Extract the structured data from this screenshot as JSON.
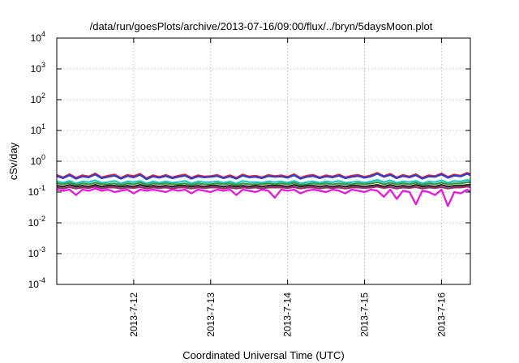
{
  "chart_data": {
    "type": "line",
    "title": "/data/run/goesPlots/archive/2013-07-16/09:00/flux/../bryn/5daysMoon.plot",
    "xlabel": "Coordinated Universal Time (UTC)",
    "ylabel": "cSv/day",
    "yscale": "log",
    "ylim": [
      0.0001,
      10000
    ],
    "xlim": [
      "2013-07-11T00:00",
      "2013-07-16T09:00"
    ],
    "grid": true,
    "legend": "none",
    "y_ticks": [
      {
        "base": "10",
        "exp": "-4",
        "value": 0.0001
      },
      {
        "base": "10",
        "exp": "-3",
        "value": 0.001
      },
      {
        "base": "10",
        "exp": "-2",
        "value": 0.01
      },
      {
        "base": "10",
        "exp": "-1",
        "value": 0.1
      },
      {
        "base": "10",
        "exp": "0",
        "value": 1
      },
      {
        "base": "10",
        "exp": "1",
        "value": 10
      },
      {
        "base": "10",
        "exp": "2",
        "value": 100
      },
      {
        "base": "10",
        "exp": "3",
        "value": 1000
      },
      {
        "base": "10",
        "exp": "4",
        "value": 10000
      }
    ],
    "x_ticks": [
      {
        "label": "2013-7-12",
        "value": "2013-07-12T00:00"
      },
      {
        "label": "2013-7-13",
        "value": "2013-07-13T00:00"
      },
      {
        "label": "2013-7-14",
        "value": "2013-07-14T00:00"
      },
      {
        "label": "2013-7-15",
        "value": "2013-07-15T00:00"
      },
      {
        "label": "2013-7-16",
        "value": "2013-07-16T00:00"
      }
    ],
    "x": [
      "2013-07-11T00:00",
      "2013-07-11T02:00",
      "2013-07-11T04:00",
      "2013-07-11T06:00",
      "2013-07-11T08:00",
      "2013-07-11T10:00",
      "2013-07-11T12:00",
      "2013-07-11T14:00",
      "2013-07-11T16:00",
      "2013-07-11T18:00",
      "2013-07-11T20:00",
      "2013-07-11T22:00",
      "2013-07-12T00:00",
      "2013-07-12T02:00",
      "2013-07-12T04:00",
      "2013-07-12T06:00",
      "2013-07-12T08:00",
      "2013-07-12T10:00",
      "2013-07-12T12:00",
      "2013-07-12T14:00",
      "2013-07-12T16:00",
      "2013-07-12T18:00",
      "2013-07-12T20:00",
      "2013-07-12T22:00",
      "2013-07-13T00:00",
      "2013-07-13T02:00",
      "2013-07-13T04:00",
      "2013-07-13T06:00",
      "2013-07-13T08:00",
      "2013-07-13T10:00",
      "2013-07-13T12:00",
      "2013-07-13T14:00",
      "2013-07-13T16:00",
      "2013-07-13T18:00",
      "2013-07-13T20:00",
      "2013-07-13T22:00",
      "2013-07-14T00:00",
      "2013-07-14T02:00",
      "2013-07-14T04:00",
      "2013-07-14T06:00",
      "2013-07-14T08:00",
      "2013-07-14T10:00",
      "2013-07-14T12:00",
      "2013-07-14T14:00",
      "2013-07-14T16:00",
      "2013-07-14T18:00",
      "2013-07-14T20:00",
      "2013-07-14T22:00",
      "2013-07-15T00:00",
      "2013-07-15T02:00",
      "2013-07-15T04:00",
      "2013-07-15T06:00",
      "2013-07-15T08:00",
      "2013-07-15T10:00",
      "2013-07-15T12:00",
      "2013-07-15T14:00",
      "2013-07-15T16:00",
      "2013-07-15T18:00",
      "2013-07-15T20:00",
      "2013-07-15T22:00",
      "2013-07-16T00:00",
      "2013-07-16T02:00",
      "2013-07-16T04:00",
      "2013-07-16T06:00",
      "2013-07-16T08:00",
      "2013-07-16T09:00"
    ],
    "series": [
      {
        "color": "#e8202a",
        "values": [
          0.36,
          0.3,
          0.38,
          0.29,
          0.35,
          0.32,
          0.4,
          0.3,
          0.34,
          0.37,
          0.29,
          0.36,
          0.33,
          0.39,
          0.28,
          0.35,
          0.31,
          0.36,
          0.3,
          0.34,
          0.37,
          0.29,
          0.35,
          0.32,
          0.33,
          0.36,
          0.3,
          0.35,
          0.29,
          0.37,
          0.32,
          0.34,
          0.3,
          0.36,
          0.33,
          0.35,
          0.31,
          0.38,
          0.29,
          0.34,
          0.36,
          0.3,
          0.35,
          0.32,
          0.37,
          0.3,
          0.34,
          0.36,
          0.31,
          0.35,
          0.42,
          0.33,
          0.39,
          0.3,
          0.36,
          0.32,
          0.38,
          0.29,
          0.35,
          0.33,
          0.4,
          0.31,
          0.37,
          0.34,
          0.42,
          0.38
        ]
      },
      {
        "color": "#2a3fd8",
        "values": [
          0.33,
          0.28,
          0.35,
          0.27,
          0.32,
          0.3,
          0.37,
          0.28,
          0.31,
          0.34,
          0.27,
          0.33,
          0.3,
          0.36,
          0.26,
          0.32,
          0.29,
          0.33,
          0.28,
          0.31,
          0.34,
          0.27,
          0.32,
          0.3,
          0.31,
          0.33,
          0.28,
          0.32,
          0.27,
          0.34,
          0.3,
          0.31,
          0.28,
          0.33,
          0.31,
          0.32,
          0.29,
          0.35,
          0.27,
          0.31,
          0.33,
          0.28,
          0.32,
          0.3,
          0.34,
          0.28,
          0.31,
          0.33,
          0.29,
          0.32,
          0.39,
          0.31,
          0.36,
          0.28,
          0.33,
          0.3,
          0.35,
          0.27,
          0.32,
          0.31,
          0.37,
          0.29,
          0.34,
          0.32,
          0.39,
          0.35
        ]
      },
      {
        "color": "#19c7c9",
        "values": [
          0.22,
          0.2,
          0.23,
          0.19,
          0.22,
          0.21,
          0.24,
          0.2,
          0.21,
          0.23,
          0.19,
          0.22,
          0.21,
          0.23,
          0.19,
          0.22,
          0.2,
          0.22,
          0.2,
          0.21,
          0.23,
          0.19,
          0.22,
          0.21,
          0.21,
          0.22,
          0.2,
          0.22,
          0.19,
          0.23,
          0.21,
          0.21,
          0.2,
          0.22,
          0.21,
          0.22,
          0.2,
          0.23,
          0.19,
          0.21,
          0.22,
          0.2,
          0.22,
          0.21,
          0.23,
          0.2,
          0.21,
          0.22,
          0.2,
          0.22,
          0.25,
          0.21,
          0.24,
          0.2,
          0.22,
          0.21,
          0.23,
          0.19,
          0.22,
          0.21,
          0.24,
          0.2,
          0.23,
          0.22,
          0.25,
          0.23
        ]
      },
      {
        "color": "#3a9a3a",
        "values": [
          0.19,
          0.18,
          0.2,
          0.17,
          0.19,
          0.18,
          0.2,
          0.18,
          0.18,
          0.19,
          0.17,
          0.19,
          0.18,
          0.2,
          0.17,
          0.19,
          0.18,
          0.19,
          0.18,
          0.18,
          0.19,
          0.17,
          0.19,
          0.18,
          0.18,
          0.19,
          0.18,
          0.19,
          0.17,
          0.19,
          0.18,
          0.18,
          0.18,
          0.19,
          0.18,
          0.19,
          0.18,
          0.2,
          0.17,
          0.18,
          0.19,
          0.18,
          0.19,
          0.18,
          0.19,
          0.18,
          0.18,
          0.19,
          0.18,
          0.19,
          0.21,
          0.18,
          0.2,
          0.18,
          0.19,
          0.18,
          0.2,
          0.17,
          0.19,
          0.18,
          0.2,
          0.18,
          0.19,
          0.19,
          0.21,
          0.2
        ]
      },
      {
        "color": "#222222",
        "values": [
          0.16,
          0.15,
          0.17,
          0.15,
          0.16,
          0.15,
          0.17,
          0.15,
          0.16,
          0.16,
          0.15,
          0.16,
          0.15,
          0.17,
          0.15,
          0.16,
          0.15,
          0.16,
          0.15,
          0.16,
          0.16,
          0.15,
          0.16,
          0.15,
          0.16,
          0.16,
          0.15,
          0.16,
          0.15,
          0.16,
          0.15,
          0.16,
          0.15,
          0.16,
          0.16,
          0.16,
          0.15,
          0.17,
          0.15,
          0.16,
          0.16,
          0.15,
          0.16,
          0.15,
          0.16,
          0.15,
          0.16,
          0.16,
          0.15,
          0.16,
          0.17,
          0.15,
          0.17,
          0.15,
          0.16,
          0.15,
          0.17,
          0.15,
          0.16,
          0.15,
          0.17,
          0.15,
          0.16,
          0.16,
          0.17,
          0.17
        ]
      },
      {
        "color": "#9b2d6b",
        "values": [
          0.14,
          0.13,
          0.145,
          0.13,
          0.14,
          0.135,
          0.15,
          0.13,
          0.14,
          0.14,
          0.13,
          0.14,
          0.135,
          0.145,
          0.13,
          0.14,
          0.135,
          0.14,
          0.13,
          0.14,
          0.14,
          0.13,
          0.14,
          0.135,
          0.14,
          0.14,
          0.13,
          0.14,
          0.13,
          0.14,
          0.135,
          0.14,
          0.13,
          0.14,
          0.14,
          0.14,
          0.135,
          0.145,
          0.13,
          0.14,
          0.14,
          0.13,
          0.14,
          0.135,
          0.14,
          0.13,
          0.14,
          0.14,
          0.135,
          0.14,
          0.15,
          0.135,
          0.145,
          0.13,
          0.14,
          0.135,
          0.145,
          0.13,
          0.14,
          0.135,
          0.145,
          0.13,
          0.14,
          0.14,
          0.15,
          0.145
        ]
      },
      {
        "color": "#ee10e0",
        "values": [
          0.12,
          0.11,
          0.12,
          0.08,
          0.12,
          0.11,
          0.13,
          0.11,
          0.12,
          0.1,
          0.11,
          0.12,
          0.09,
          0.12,
          0.11,
          0.12,
          0.11,
          0.1,
          0.12,
          0.11,
          0.12,
          0.09,
          0.12,
          0.11,
          0.1,
          0.12,
          0.11,
          0.12,
          0.08,
          0.12,
          0.11,
          0.1,
          0.12,
          0.11,
          0.065,
          0.12,
          0.11,
          0.12,
          0.09,
          0.11,
          0.12,
          0.11,
          0.1,
          0.12,
          0.11,
          0.09,
          0.12,
          0.11,
          0.1,
          0.12,
          0.11,
          0.07,
          0.12,
          0.06,
          0.11,
          0.1,
          0.04,
          0.11,
          0.1,
          0.08,
          0.12,
          0.035,
          0.1,
          0.09,
          0.12,
          0.1
        ]
      }
    ]
  }
}
